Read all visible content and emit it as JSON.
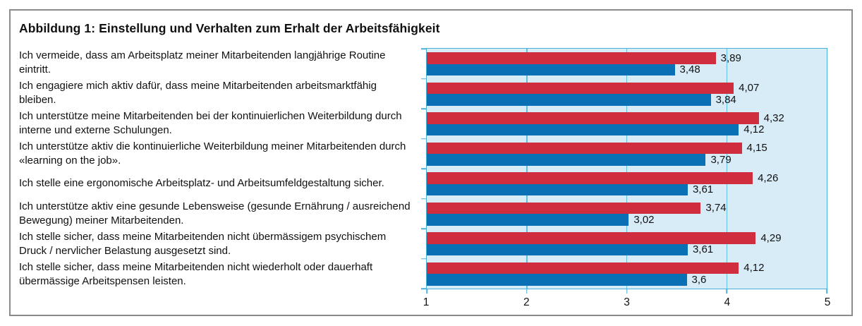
{
  "title": "Abbildung 1: Einstellung und Verhalten zum Erhalt der Arbeitsfähigkeit",
  "colors": {
    "bar_red": "#d02d3e",
    "bar_blue": "#0a70b6",
    "plot_background": "#d8ecf8",
    "grid_cyan": "#62c0e2",
    "plot_border": "#49b0d8",
    "frame_border": "#8b8b8b",
    "text": "#111111"
  },
  "chart_data": {
    "type": "bar",
    "orientation": "horizontal",
    "title": "Abbildung 1: Einstellung und Verhalten zum Erhalt der Arbeitsfähigkeit",
    "xlabel": "",
    "ylabel": "",
    "xlim": [
      1,
      5
    ],
    "x_tick_labels": [
      "1",
      "2",
      "3",
      "4",
      "5"
    ],
    "x_tick_values": [
      1,
      2,
      3,
      4,
      5
    ],
    "gridline_values": [
      2,
      3,
      4
    ],
    "grid": "vertical gridlines at 2, 3 and 4 on light blue plot background",
    "legend": "none shown",
    "decimal_separator": "comma",
    "categories": [
      "Ich vermeide, dass am Arbeitsplatz meiner Mitarbeitenden langjährige Routine eintritt.",
      "Ich engagiere mich aktiv dafür, dass meine Mitarbeitenden arbeitsmarktfähig bleiben.",
      "Ich unterstütze meine Mitarbeitenden bei der kontinuierlichen Weiterbildung durch interne und externe Schulungen.",
      "Ich unterstütze aktiv die kontinuierliche Weiterbildung meiner Mitarbeitenden durch «learning on the job».",
      "Ich stelle eine ergonomische Arbeitsplatz- und Arbeitsumfeldgestaltung sicher.",
      "Ich unterstütze aktiv eine gesunde Lebensweise (gesunde Ernährung / ausreichend Bewegung) meiner Mitarbeitenden.",
      "Ich stelle sicher, dass meine Mitarbeitenden nicht übermässigem psychischem Druck / nervlicher Belastung ausgesetzt sind.",
      "Ich stelle sicher, dass meine Mitarbeitenden nicht wiederholt oder dauerhaft übermässige Arbeitspensen leisten."
    ],
    "series": [
      {
        "name": "red-series",
        "color": "#d02d3e",
        "values": [
          3.89,
          4.07,
          4.32,
          4.15,
          4.26,
          3.74,
          4.29,
          4.12
        ],
        "labels": [
          "3,89",
          "4,07",
          "4,32",
          "4,15",
          "4,26",
          "3,74",
          "4,29",
          "4,12"
        ]
      },
      {
        "name": "blue-series",
        "color": "#0a70b6",
        "values": [
          3.48,
          3.84,
          4.12,
          3.79,
          3.61,
          3.02,
          3.61,
          3.6
        ],
        "labels": [
          "3,48",
          "3,84",
          "4,12",
          "3,79",
          "3,61",
          "3,02",
          "3,61",
          "3,6"
        ]
      }
    ]
  }
}
